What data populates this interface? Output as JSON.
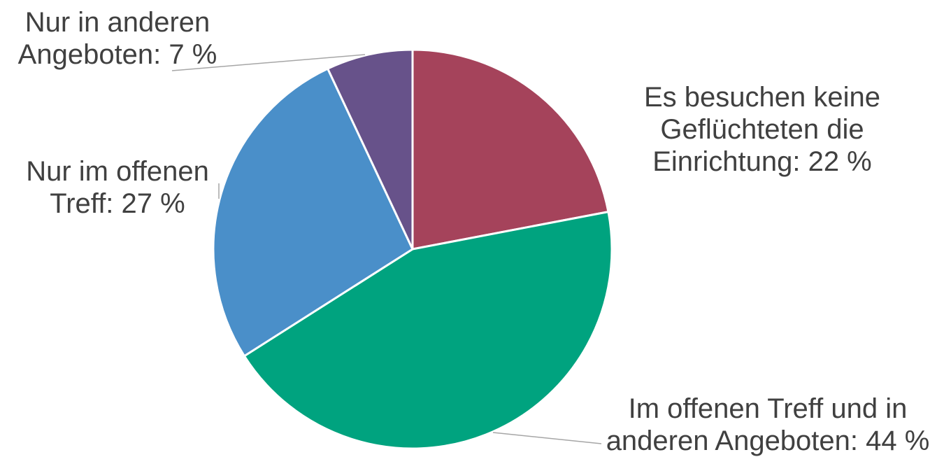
{
  "chart_data": {
    "type": "pie",
    "slices": [
      {
        "label": "Es besuchen keine Geflüchteten die Einrichtung: 22 %",
        "lines": [
          "Es besuchen keine",
          "Geflüchteten die",
          "Einrichtung: 22 %"
        ],
        "value": 22,
        "color": "#a5435b"
      },
      {
        "label": "Im offenen Treff und in anderen Angeboten: 44 %",
        "lines": [
          "Im offenen Treff und in",
          "anderen Angeboten: 44 %"
        ],
        "value": 44,
        "color": "#00a37f"
      },
      {
        "label": "Nur im offenen Treff: 27 %",
        "lines": [
          "Nur im offenen",
          "Treff: 27 %"
        ],
        "value": 27,
        "color": "#4a8fc9"
      },
      {
        "label": "Nur in anderen Angeboten: 7 %",
        "lines": [
          "Nur in anderen",
          "Angeboten: 7 %"
        ],
        "value": 7,
        "color": "#67528a"
      }
    ],
    "title": "",
    "legend": "none",
    "start_angle": "12 o'clock, clockwise"
  }
}
